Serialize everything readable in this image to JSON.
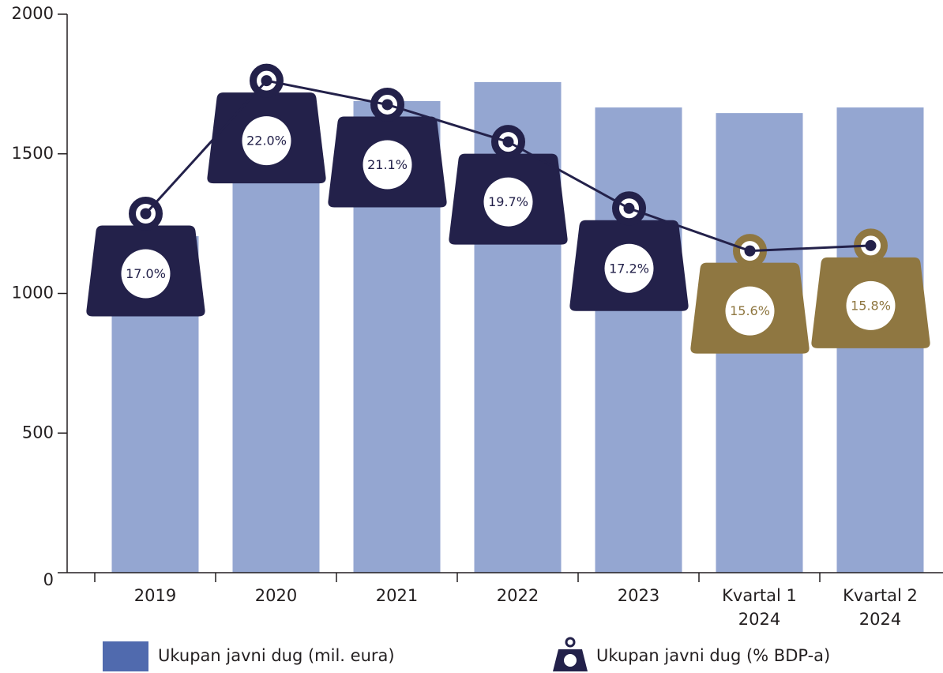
{
  "chart_data": {
    "type": "bar",
    "categories": [
      "2019",
      "2020",
      "2021",
      "2022",
      "2023",
      "Kvartal 1 2024",
      "Kvartal 2 2024"
    ],
    "ylim": [
      0,
      2000
    ],
    "yticks": [
      0,
      500,
      1000,
      1500,
      2000
    ],
    "y2lim": [
      3.5,
      24.5
    ],
    "series": [
      {
        "name": "Ukupan javni dug (mil. eura)",
        "type": "bar",
        "color": "#94a6d1",
        "values": [
          1205,
          1600,
          1689,
          1757,
          1666,
          1646,
          1666
        ]
      },
      {
        "name": "Ukupan javni dug (% BDP-a)",
        "type": "line",
        "axis": "y2",
        "color": "#23214a",
        "colors": [
          "#23214a",
          "#23214a",
          "#23214a",
          "#23214a",
          "#23214a",
          "#8f7741",
          "#8f7741"
        ],
        "values": [
          17.0,
          22.0,
          21.1,
          19.7,
          17.2,
          15.6,
          15.8
        ],
        "value_labels": [
          "17.0%",
          "22.0%",
          "21.1%",
          "19.7%",
          "17.2%",
          "15.6%",
          "15.8%"
        ]
      }
    ]
  }
}
